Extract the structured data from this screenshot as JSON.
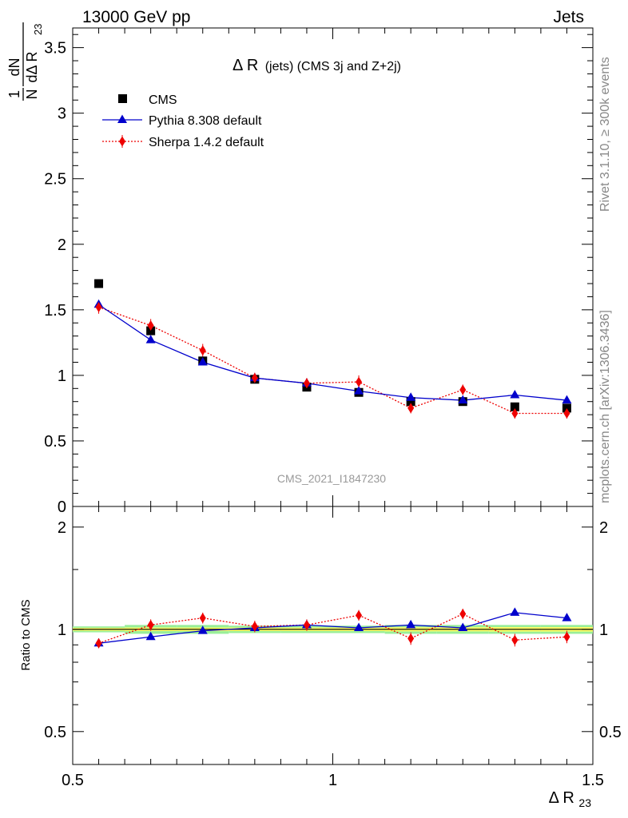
{
  "header": {
    "energy_label": "13000 GeV pp",
    "process_label": "Jets"
  },
  "side_labels": {
    "rivet": "Rivet 3.1.10, ≥ 300k events",
    "mcplots": "mcplots.cern.ch [arXiv:1306.3436]"
  },
  "analysis_id": "CMS_2021_I1847230",
  "colors": {
    "cms": "#000000",
    "pythia": "#0000cc",
    "sherpa": "#ee0000",
    "band_stat": "#ffff66",
    "band_total": "#99ee99"
  },
  "chart_data": [
    {
      "type": "scatter",
      "panel": "main",
      "title": "Δ R (jets) (CMS 3j and Z+2j)",
      "title_main": "Δ R",
      "title_detail": "(jets) (CMS 3j and Z+2j)",
      "ylabel_num": "1",
      "ylabel_den": "N",
      "ylabel_dN": "dN",
      "ylabel_dR": "dΔ R",
      "ylabel_sub": "23",
      "xlim": [
        0.5,
        1.5
      ],
      "ylim": [
        0,
        3.65
      ],
      "yticks": [
        "0",
        "0.5",
        "1",
        "1.5",
        "2",
        "2.5",
        "3",
        "3.5"
      ],
      "ytick_values": [
        0,
        0.5,
        1,
        1.5,
        2,
        2.5,
        3,
        3.5
      ],
      "legend_position": "top-left",
      "x": [
        0.55,
        0.65,
        0.75,
        0.85,
        0.95,
        1.05,
        1.15,
        1.25,
        1.35,
        1.45
      ],
      "series": [
        {
          "name": "CMS",
          "marker": "square",
          "values": [
            1.7,
            1.34,
            1.11,
            0.97,
            0.91,
            0.87,
            0.8,
            0.8,
            0.76,
            0.75
          ]
        },
        {
          "name": "Pythia 8.308 default",
          "marker": "triangle",
          "values": [
            1.54,
            1.27,
            1.1,
            0.98,
            0.94,
            0.88,
            0.83,
            0.81,
            0.85,
            0.81
          ]
        },
        {
          "name": "Sherpa 1.4.2 default",
          "marker": "diamond",
          "values": [
            1.52,
            1.38,
            1.19,
            0.98,
            0.94,
            0.95,
            0.75,
            0.89,
            0.71,
            0.71
          ],
          "errors": [
            0.05,
            0.05,
            0.05,
            0.04,
            0.04,
            0.05,
            0.04,
            0.04,
            0.04,
            0.04
          ]
        }
      ]
    },
    {
      "type": "scatter",
      "panel": "ratio",
      "ylabel": "Ratio to CMS",
      "xlabel_main": "Δ R",
      "xlabel_sub": "23",
      "xlim": [
        0.5,
        1.5
      ],
      "ylim": [
        0.4,
        2.3
      ],
      "yscale": "log",
      "xticks": [
        "0.5",
        "1",
        "1.5"
      ],
      "xtick_values": [
        0.5,
        1,
        1.5
      ],
      "yticks": [
        "0.5",
        "1",
        "2"
      ],
      "ytick_values": [
        0.5,
        1,
        2
      ],
      "x": [
        0.55,
        0.65,
        0.75,
        0.85,
        0.95,
        1.05,
        1.15,
        1.25,
        1.35,
        1.45
      ],
      "series": [
        {
          "name": "Pythia 8.308 default",
          "values": [
            0.91,
            0.95,
            0.99,
            1.01,
            1.03,
            1.01,
            1.03,
            1.01,
            1.12,
            1.08
          ]
        },
        {
          "name": "Sherpa 1.4.2 default",
          "values": [
            0.91,
            1.03,
            1.08,
            1.02,
            1.03,
            1.1,
            0.94,
            1.11,
            0.93,
            0.95
          ],
          "errors": [
            0.03,
            0.04,
            0.04,
            0.04,
            0.04,
            0.04,
            0.04,
            0.04,
            0.04,
            0.04
          ]
        }
      ],
      "band": {
        "x_edges": [
          0.5,
          0.6,
          0.7,
          0.8,
          0.9,
          1.0,
          1.1,
          1.2,
          1.3,
          1.4,
          1.5
        ],
        "stat": [
          0.01,
          0.012,
          0.012,
          0.012,
          0.012,
          0.012,
          0.014,
          0.014,
          0.015,
          0.015
        ],
        "total": [
          0.02,
          0.03,
          0.03,
          0.025,
          0.025,
          0.025,
          0.03,
          0.03,
          0.03,
          0.03
        ]
      }
    }
  ]
}
